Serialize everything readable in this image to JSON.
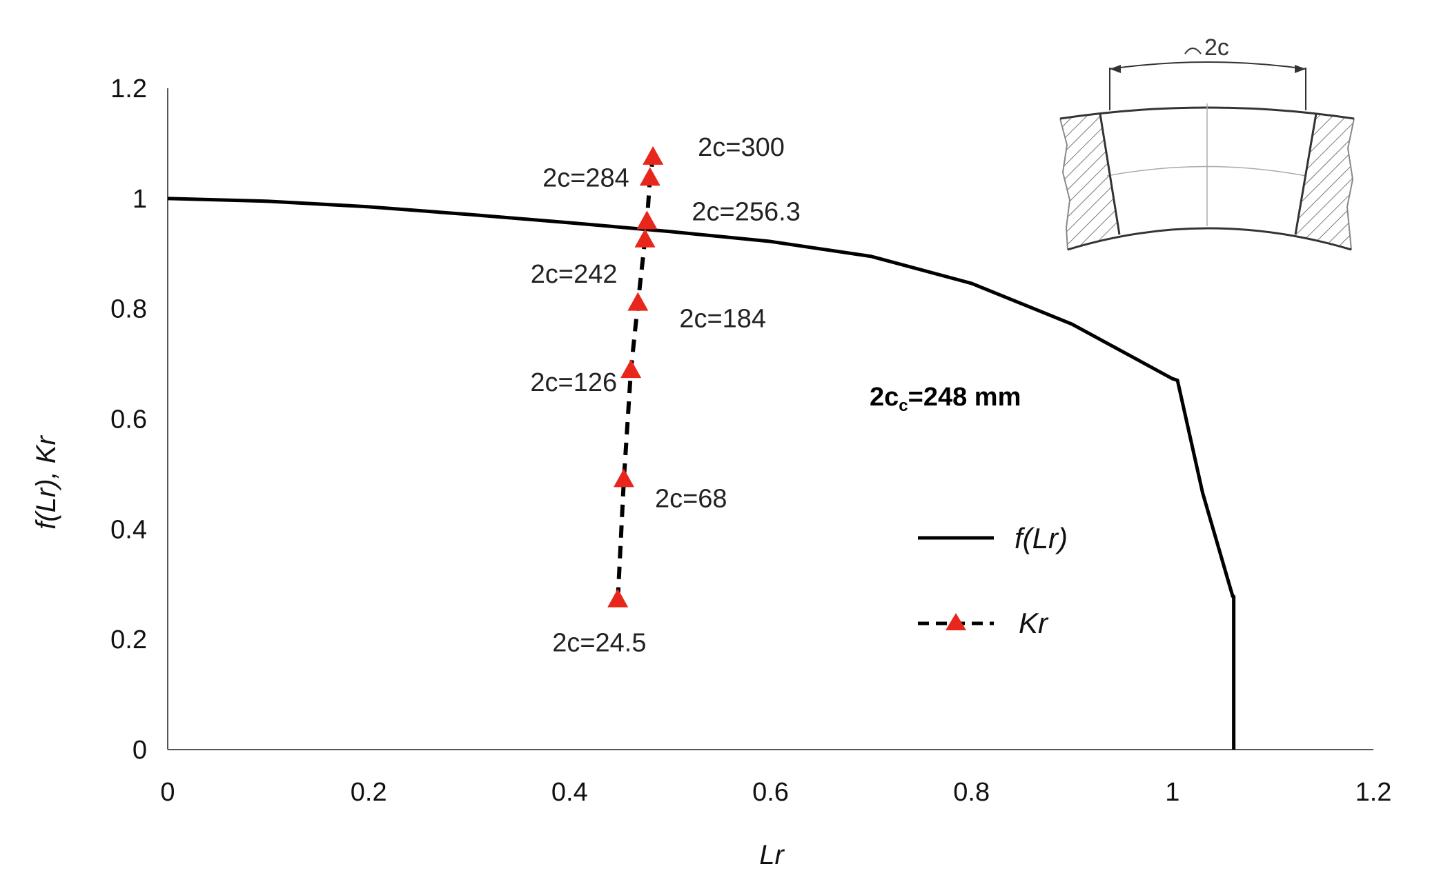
{
  "chart_data": {
    "type": "line",
    "xlabel": "Lr",
    "ylabel": "f(Lr), Kr",
    "xlim": [
      0,
      1.2
    ],
    "ylim": [
      0,
      1.2
    ],
    "x_ticks": [
      "0",
      "0.2",
      "0.4",
      "0.6",
      "0.8",
      "1",
      "1.2"
    ],
    "y_ticks": [
      "0",
      "0.2",
      "0.4",
      "0.6",
      "0.8",
      "1",
      "1.2"
    ],
    "grid": false,
    "legend_position": "center-right",
    "series": [
      {
        "name": "f(Lr)",
        "style": "solid",
        "color": "#000000",
        "x": [
          0,
          0.1,
          0.2,
          0.3,
          0.4,
          0.5,
          0.6,
          0.7,
          0.8,
          0.9,
          1.0,
          1.005,
          1.03,
          1.06,
          1.061,
          1.061
        ],
        "y": [
          1.0,
          0.995,
          0.985,
          0.971,
          0.956,
          0.94,
          0.922,
          0.895,
          0.846,
          0.772,
          0.673,
          0.67,
          0.466,
          0.278,
          0.278,
          0
        ]
      },
      {
        "name": "Kr",
        "style": "dashed",
        "color": "#000000",
        "marker": "triangle",
        "marker_color": "#e8261c",
        "x": [
          0.448,
          0.454,
          0.461,
          0.468,
          0.475,
          0.477,
          0.48,
          0.483
        ],
        "y": [
          0.272,
          0.49,
          0.688,
          0.81,
          0.925,
          0.958,
          1.037,
          1.075
        ],
        "labels": [
          "2c=24.5",
          "2c=68",
          "2c=126",
          "2c=184",
          "2c=242",
          "2c=256.3",
          "2c=284",
          "2c=300"
        ]
      }
    ],
    "annotation": {
      "main": "2c",
      "subscript": "c",
      "rest": "=248 mm"
    },
    "inset": {
      "label": "2c"
    }
  }
}
